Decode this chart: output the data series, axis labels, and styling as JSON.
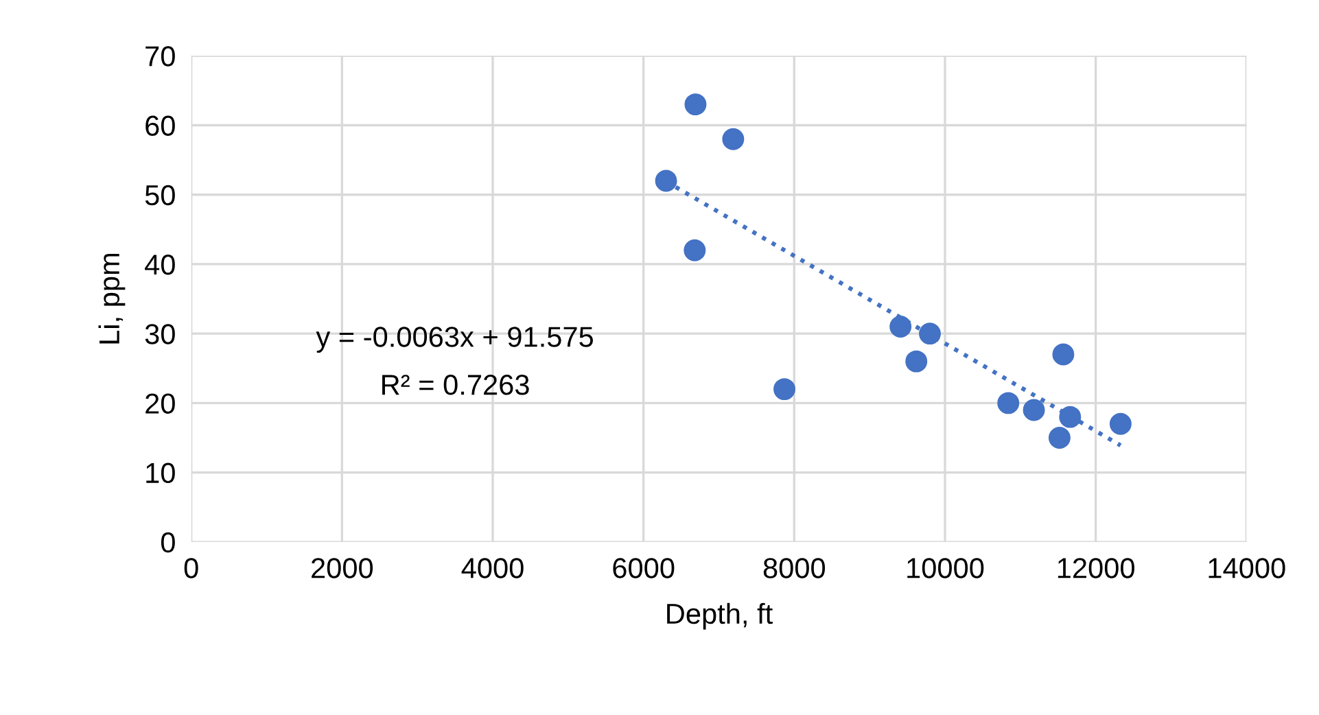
{
  "chart_data": {
    "type": "scatter",
    "xlabel": "Depth, ft",
    "ylabel": "Li, ppm",
    "series": [
      {
        "color": "#4472c4",
        "marker": "circle",
        "x": [
          6300,
          6690,
          7190,
          6680,
          7870,
          9410,
          9800,
          9620,
          10840,
          11180,
          11570,
          11660,
          11520,
          12330
        ],
        "values": [
          52,
          63,
          58,
          42,
          22,
          31,
          30,
          26,
          20,
          19,
          27,
          18,
          15,
          17
        ]
      },
      {
        "type": "line",
        "color": "#4472c4",
        "line_style": "dotted",
        "x": [
          6300,
          12330
        ],
        "values": [
          51.9,
          13.9
        ]
      }
    ],
    "annotations": [
      "y = -0.0063x + 91.575",
      "R² = 0.7263"
    ],
    "xlim": [
      0,
      14000
    ],
    "xticks": [
      0,
      2000,
      4000,
      6000,
      8000,
      10000,
      12000,
      14000
    ],
    "ylim": [
      0,
      70
    ],
    "yticks": [
      0,
      10,
      20,
      30,
      40,
      50,
      60,
      70
    ],
    "grid": true,
    "legend": false
  }
}
